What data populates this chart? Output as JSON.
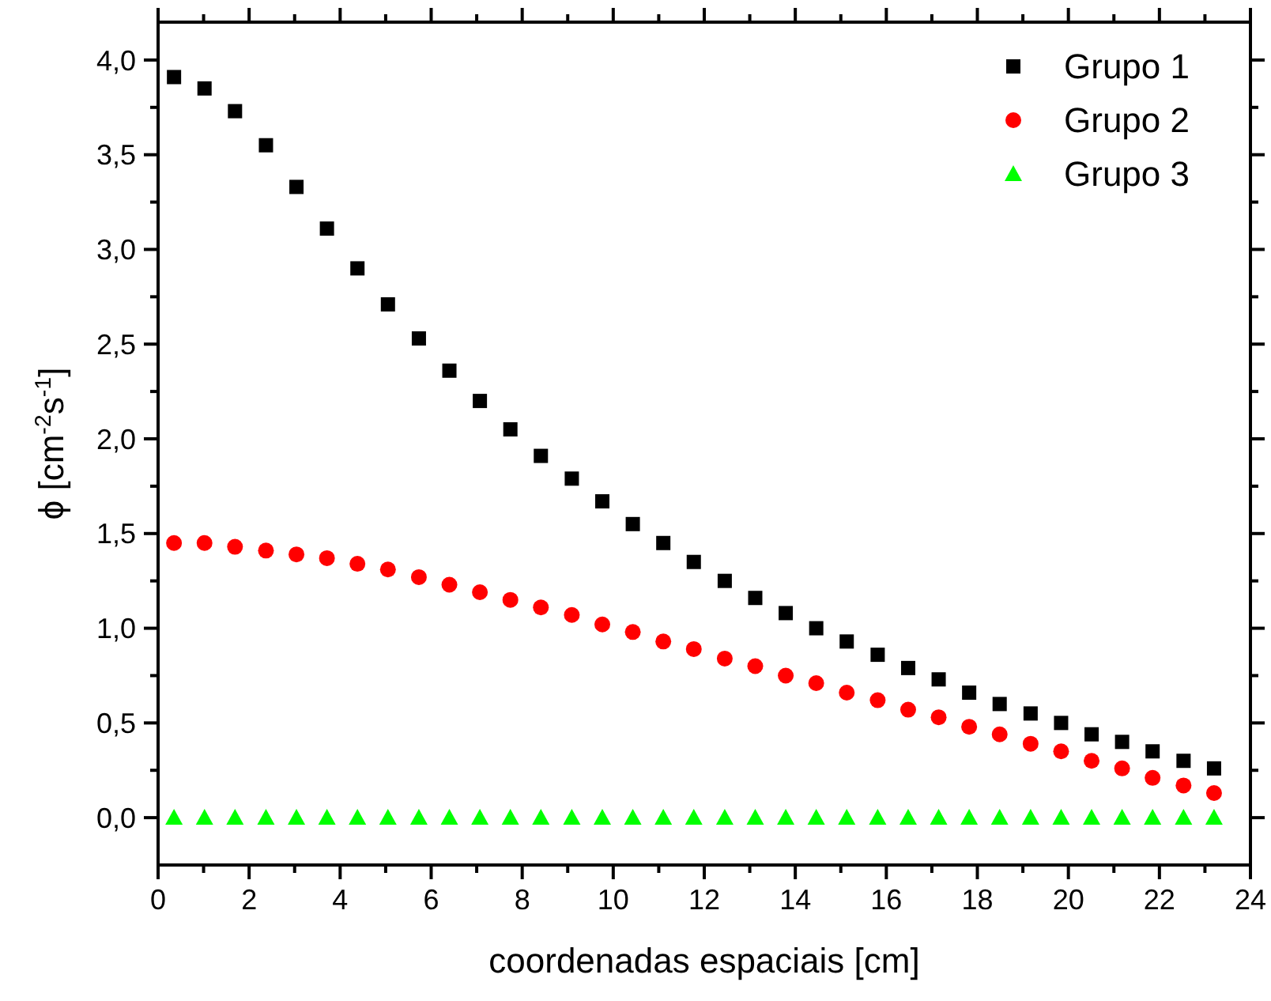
{
  "chart_data": {
    "type": "scatter",
    "xlabel": "coordenadas espaciais [cm]",
    "ylabel": "ϕ [cm$^{-2}$s$^{-1}$]",
    "x": [
      0.35,
      1.02,
      1.69,
      2.37,
      3.04,
      3.71,
      4.38,
      5.05,
      5.73,
      6.4,
      7.07,
      7.74,
      8.41,
      9.09,
      9.76,
      10.43,
      11.1,
      11.77,
      12.45,
      13.12,
      13.79,
      14.46,
      15.13,
      15.81,
      16.48,
      17.15,
      17.82,
      18.49,
      19.17,
      19.84,
      20.51,
      21.18,
      21.85,
      22.53,
      23.2
    ],
    "series": [
      {
        "name": "Grupo 1",
        "color": "#000000",
        "marker": "square",
        "values": [
          3.91,
          3.85,
          3.73,
          3.55,
          3.33,
          3.11,
          2.9,
          2.71,
          2.53,
          2.36,
          2.2,
          2.05,
          1.91,
          1.79,
          1.67,
          1.55,
          1.45,
          1.35,
          1.25,
          1.16,
          1.08,
          1.0,
          0.93,
          0.86,
          0.79,
          0.73,
          0.66,
          0.6,
          0.55,
          0.5,
          0.44,
          0.4,
          0.35,
          0.3,
          0.26
        ]
      },
      {
        "name": "Grupo 2",
        "color": "#ff0000",
        "marker": "circle",
        "values": [
          1.45,
          1.45,
          1.43,
          1.41,
          1.39,
          1.37,
          1.34,
          1.31,
          1.27,
          1.23,
          1.19,
          1.15,
          1.11,
          1.07,
          1.02,
          0.98,
          0.93,
          0.89,
          0.84,
          0.8,
          0.75,
          0.71,
          0.66,
          0.62,
          0.57,
          0.53,
          0.48,
          0.44,
          0.39,
          0.35,
          0.3,
          0.26,
          0.21,
          0.17,
          0.13
        ]
      },
      {
        "name": "Grupo 3",
        "color": "#00ff00",
        "marker": "triangle",
        "values": [
          0,
          0,
          0,
          0,
          0,
          0,
          0,
          0,
          0,
          0,
          0,
          0,
          0,
          0,
          0,
          0,
          0,
          0,
          0,
          0,
          0,
          0,
          0,
          0,
          0,
          0,
          0,
          0,
          0,
          0,
          0,
          0,
          0,
          0,
          0
        ]
      }
    ],
    "xlim": [
      0,
      24
    ],
    "xticks": [
      0,
      {
        "value": 1,
        "label": null
      },
      2,
      {
        "value": 3,
        "label": null
      },
      4,
      {
        "value": 5,
        "label": null
      },
      6,
      {
        "value": 7,
        "label": null
      },
      8,
      {
        "value": 9,
        "label": null
      },
      10,
      {
        "value": 11,
        "label": null
      },
      12,
      {
        "value": 13,
        "label": null
      },
      14,
      {
        "value": 15,
        "label": null
      },
      16,
      {
        "value": 17,
        "label": null
      },
      18,
      {
        "value": 19,
        "label": null
      },
      20,
      {
        "value": 21,
        "label": null
      },
      22,
      {
        "value": 23,
        "label": null
      },
      24
    ],
    "ylim": [
      -0.25,
      4.2
    ],
    "yticks": [
      {
        "value": 0,
        "label": "0,0"
      },
      {
        "value": 0.25,
        "label": null
      },
      {
        "value": 0.5,
        "label": "0,5"
      },
      {
        "value": 0.75,
        "label": null
      },
      {
        "value": 1,
        "label": "1,0"
      },
      {
        "value": 1.25,
        "label": null
      },
      {
        "value": 1.5,
        "label": "1,5"
      },
      {
        "value": 1.75,
        "label": null
      },
      {
        "value": 2,
        "label": "2,0"
      },
      {
        "value": 2.25,
        "label": null
      },
      {
        "value": 2.5,
        "label": "2,5"
      },
      {
        "value": 2.75,
        "label": null
      },
      {
        "value": 3,
        "label": "3,0"
      },
      {
        "value": 3.25,
        "label": null
      },
      {
        "value": 3.5,
        "label": "3,5"
      },
      {
        "value": 3.75,
        "label": null
      },
      {
        "value": 4,
        "label": "4,0"
      }
    ],
    "grid": false,
    "legend": "top right"
  }
}
